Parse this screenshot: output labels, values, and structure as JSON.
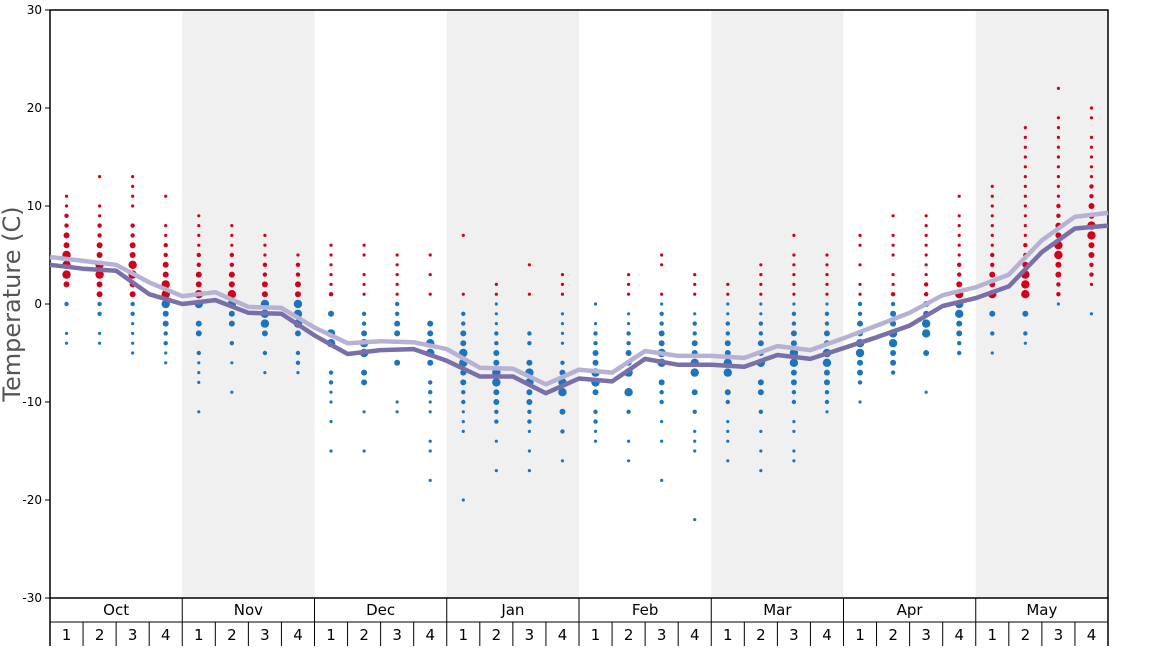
{
  "chart_data": {
    "type": "scatter",
    "ylabel": "Temperature (C)",
    "ylim": [
      -30,
      30
    ],
    "yticks": [
      30,
      20,
      10,
      0,
      -10,
      -20,
      -30
    ],
    "months": [
      "Oct",
      "Nov",
      "Dec",
      "Jan",
      "Feb",
      "Mar",
      "Apr",
      "May"
    ],
    "weeks": [
      "1",
      "2",
      "3",
      "4"
    ],
    "grid": false,
    "shaded_months": [
      "Nov",
      "Jan",
      "Mar",
      "May"
    ],
    "colors": {
      "warm_points": "#d0021b",
      "cold_points": "#1c75bc",
      "upper_line": "#b7b1d4",
      "lower_line": "#7a6fa8",
      "shade": "#f0f0f0"
    },
    "series": [
      {
        "values": [
          4.8,
          4.4,
          4.0,
          2.2,
          0.8,
          1.2,
          -0.3,
          -0.4,
          -2.4,
          -4.0,
          -3.8,
          -3.9,
          -4.6,
          -6.5,
          -6.6,
          -8.2,
          -6.7,
          -7.0,
          -4.8,
          -5.3,
          -5.3,
          -5.5,
          -4.3,
          -4.7,
          -3.5,
          -2.2,
          -0.9,
          0.9,
          1.7,
          3.0,
          6.5,
          8.9,
          9.3
        ]
      },
      {
        "values": [
          4.0,
          3.6,
          3.4,
          1.0,
          0.0,
          0.4,
          -0.9,
          -1.0,
          -3.2,
          -5.1,
          -4.7,
          -4.6,
          -5.8,
          -7.4,
          -7.4,
          -9.1,
          -7.6,
          -7.9,
          -5.6,
          -6.2,
          -6.2,
          -6.4,
          -5.2,
          -5.6,
          -4.5,
          -3.4,
          -2.2,
          -0.2,
          0.6,
          1.8,
          5.3,
          7.7,
          8.0
        ]
      }
    ],
    "warm_points": [
      {
        "m": 0,
        "w": 0,
        "v": [
          11,
          10,
          9,
          8,
          7,
          6,
          5,
          4,
          3,
          2
        ]
      },
      {
        "m": 0,
        "w": 1,
        "v": [
          13,
          10,
          9,
          8,
          7,
          6,
          5,
          4,
          3,
          2,
          1
        ]
      },
      {
        "m": 0,
        "w": 2,
        "v": [
          13,
          12,
          11,
          10,
          8,
          7,
          6,
          5,
          4,
          3,
          2,
          1
        ]
      },
      {
        "m": 0,
        "w": 3,
        "v": [
          11,
          8,
          7,
          6,
          5,
          4,
          3,
          2,
          1
        ]
      },
      {
        "m": 1,
        "w": 0,
        "v": [
          9,
          8,
          7,
          6,
          5,
          4,
          3,
          2,
          1
        ]
      },
      {
        "m": 1,
        "w": 1,
        "v": [
          8,
          7,
          6,
          5,
          4,
          3,
          2,
          1
        ]
      },
      {
        "m": 1,
        "w": 2,
        "v": [
          7,
          6,
          5,
          4,
          3,
          2,
          1
        ]
      },
      {
        "m": 1,
        "w": 3,
        "v": [
          5,
          4,
          3,
          2,
          1
        ]
      },
      {
        "m": 2,
        "w": 0,
        "v": [
          6,
          5,
          4,
          3,
          2,
          1
        ]
      },
      {
        "m": 2,
        "w": 1,
        "v": [
          6,
          5,
          3,
          2,
          1
        ]
      },
      {
        "m": 2,
        "w": 2,
        "v": [
          5,
          4,
          3,
          2,
          1
        ]
      },
      {
        "m": 2,
        "w": 3,
        "v": [
          5,
          3,
          1
        ]
      },
      {
        "m": 3,
        "w": 0,
        "v": [
          7,
          1
        ]
      },
      {
        "m": 3,
        "w": 1,
        "v": [
          2,
          1
        ]
      },
      {
        "m": 3,
        "w": 2,
        "v": [
          4,
          1
        ]
      },
      {
        "m": 3,
        "w": 3,
        "v": [
          3,
          2,
          1
        ]
      },
      {
        "m": 4,
        "w": 1,
        "v": [
          3,
          2,
          1
        ]
      },
      {
        "m": 4,
        "w": 2,
        "v": [
          5,
          4,
          1
        ]
      },
      {
        "m": 4,
        "w": 3,
        "v": [
          3,
          2,
          1
        ]
      },
      {
        "m": 5,
        "w": 0,
        "v": [
          2,
          1
        ]
      },
      {
        "m": 5,
        "w": 1,
        "v": [
          4,
          3,
          2,
          1
        ]
      },
      {
        "m": 5,
        "w": 2,
        "v": [
          7,
          5,
          4,
          3,
          2,
          1
        ]
      },
      {
        "m": 5,
        "w": 3,
        "v": [
          5,
          4,
          3,
          2,
          1
        ]
      },
      {
        "m": 6,
        "w": 0,
        "v": [
          7,
          6,
          4,
          2,
          1
        ]
      },
      {
        "m": 6,
        "w": 1,
        "v": [
          9,
          7,
          6,
          5,
          3,
          2,
          1
        ]
      },
      {
        "m": 6,
        "w": 2,
        "v": [
          9,
          8,
          7,
          6,
          5,
          4,
          3,
          2,
          1
        ]
      },
      {
        "m": 6,
        "w": 3,
        "v": [
          11,
          9,
          8,
          7,
          6,
          5,
          4,
          3,
          2,
          1
        ]
      },
      {
        "m": 7,
        "w": 0,
        "v": [
          12,
          11,
          10,
          9,
          8,
          7,
          6,
          5,
          4,
          3,
          2,
          1
        ]
      },
      {
        "m": 7,
        "w": 1,
        "v": [
          18,
          17,
          16,
          15,
          14,
          13,
          12,
          11,
          10,
          9,
          8,
          7,
          6,
          5,
          4,
          3,
          2,
          1
        ]
      },
      {
        "m": 7,
        "w": 2,
        "v": [
          22,
          19,
          18,
          17,
          16,
          15,
          14,
          13,
          12,
          11,
          10,
          9,
          8,
          7,
          6,
          5,
          4,
          3,
          2,
          1
        ]
      },
      {
        "m": 7,
        "w": 3,
        "v": [
          20,
          19,
          17,
          16,
          15,
          14,
          13,
          12,
          11,
          10,
          9,
          8,
          7,
          6,
          5,
          4,
          3,
          2
        ]
      }
    ],
    "cold_points": [
      {
        "m": 0,
        "w": 0,
        "v": [
          0,
          -3,
          -4
        ]
      },
      {
        "m": 0,
        "w": 1,
        "v": [
          0,
          -1,
          -3,
          -4
        ]
      },
      {
        "m": 0,
        "w": 2,
        "v": [
          0,
          -1,
          -2,
          -3,
          -4,
          -5
        ]
      },
      {
        "m": 0,
        "w": 3,
        "v": [
          0,
          -1,
          -2,
          -3,
          -4,
          -5,
          -6
        ]
      },
      {
        "m": 1,
        "w": 0,
        "v": [
          0,
          -2,
          -3,
          -5,
          -6,
          -7,
          -8,
          -11
        ]
      },
      {
        "m": 1,
        "w": 1,
        "v": [
          0,
          -1,
          -2,
          -4,
          -6,
          -9
        ]
      },
      {
        "m": 1,
        "w": 2,
        "v": [
          0,
          -1,
          -2,
          -3,
          -5,
          -7
        ]
      },
      {
        "m": 1,
        "w": 3,
        "v": [
          0,
          -1,
          -2,
          -3,
          -5,
          -6,
          -7
        ]
      },
      {
        "m": 2,
        "w": 0,
        "v": [
          -1,
          -3,
          -4,
          -7,
          -8,
          -9,
          -10,
          -12,
          -15
        ]
      },
      {
        "m": 2,
        "w": 1,
        "v": [
          -1,
          -2,
          -3,
          -4,
          -5,
          -7,
          -8,
          -11,
          -15
        ]
      },
      {
        "m": 2,
        "w": 2,
        "v": [
          0,
          -1,
          -2,
          -3,
          -6,
          -10,
          -11
        ]
      },
      {
        "m": 2,
        "w": 3,
        "v": [
          -2,
          -3,
          -4,
          -5,
          -6,
          -8,
          -9,
          -10,
          -11,
          -14,
          -15,
          -18
        ]
      },
      {
        "m": 3,
        "w": 0,
        "v": [
          -1,
          -2,
          -3,
          -4,
          -5,
          -6,
          -7,
          -8,
          -9,
          -10,
          -11,
          -12,
          -13,
          -20
        ]
      },
      {
        "m": 3,
        "w": 1,
        "v": [
          0,
          -1,
          -2,
          -3,
          -4,
          -5,
          -6,
          -7,
          -8,
          -9,
          -10,
          -11,
          -12,
          -14,
          -17
        ]
      },
      {
        "m": 3,
        "w": 2,
        "v": [
          -3,
          -4,
          -6,
          -7,
          -8,
          -9,
          -10,
          -11,
          -12,
          -13,
          -15,
          -17
        ]
      },
      {
        "m": 3,
        "w": 3,
        "v": [
          -1,
          -2,
          -3,
          -4,
          -6,
          -7,
          -8,
          -9,
          -11,
          -13,
          -16
        ]
      },
      {
        "m": 4,
        "w": 0,
        "v": [
          0,
          -2,
          -3,
          -4,
          -5,
          -6,
          -7,
          -8,
          -9,
          -11,
          -12,
          -13,
          -14
        ]
      },
      {
        "m": 4,
        "w": 1,
        "v": [
          -1,
          -2,
          -3,
          -4,
          -5,
          -6,
          -7,
          -9,
          -11,
          -14,
          -16
        ]
      },
      {
        "m": 4,
        "w": 2,
        "v": [
          0,
          -1,
          -2,
          -3,
          -4,
          -5,
          -6,
          -8,
          -9,
          -10,
          -12,
          -14,
          -18
        ]
      },
      {
        "m": 4,
        "w": 3,
        "v": [
          -1,
          -2,
          -3,
          -4,
          -5,
          -6,
          -7,
          -9,
          -11,
          -13,
          -14,
          -15,
          -22
        ]
      },
      {
        "m": 5,
        "w": 0,
        "v": [
          0,
          -1,
          -2,
          -3,
          -4,
          -5,
          -6,
          -7,
          -9,
          -10,
          -12,
          -13,
          -14,
          -16
        ]
      },
      {
        "m": 5,
        "w": 1,
        "v": [
          0,
          -1,
          -2,
          -3,
          -4,
          -5,
          -6,
          -8,
          -9,
          -11,
          -13,
          -15,
          -17
        ]
      },
      {
        "m": 5,
        "w": 2,
        "v": [
          0,
          -1,
          -2,
          -3,
          -4,
          -5,
          -6,
          -7,
          -8,
          -9,
          -10,
          -12,
          -13,
          -15,
          -16
        ]
      },
      {
        "m": 5,
        "w": 3,
        "v": [
          0,
          -1,
          -2,
          -3,
          -4,
          -5,
          -6,
          -7,
          -8,
          -9,
          -10,
          -11
        ]
      },
      {
        "m": 6,
        "w": 0,
        "v": [
          0,
          -1,
          -2,
          -3,
          -4,
          -5,
          -6,
          -7,
          -8,
          -10
        ]
      },
      {
        "m": 6,
        "w": 1,
        "v": [
          0,
          -1,
          -2,
          -3,
          -4,
          -5,
          -6,
          -7
        ]
      },
      {
        "m": 6,
        "w": 2,
        "v": [
          0,
          -1,
          -2,
          -3,
          -5,
          -9
        ]
      },
      {
        "m": 6,
        "w": 3,
        "v": [
          0,
          -1,
          -2,
          -3,
          -4,
          -5
        ]
      },
      {
        "m": 7,
        "w": 0,
        "v": [
          -1,
          -3,
          -5
        ]
      },
      {
        "m": 7,
        "w": 1,
        "v": [
          -1,
          -3,
          -4
        ]
      },
      {
        "m": 7,
        "w": 2,
        "v": [
          0
        ]
      },
      {
        "m": 7,
        "w": 3,
        "v": [
          -1
        ]
      }
    ]
  }
}
